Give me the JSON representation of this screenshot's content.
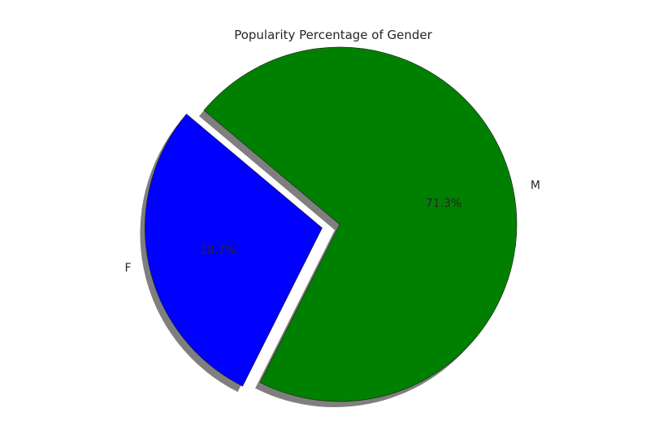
{
  "chart_data": {
    "type": "pie",
    "title": "Popularity Percentage of Gender",
    "categories": [
      "F",
      "M"
    ],
    "values": [
      28.7,
      71.3
    ],
    "percent_labels": [
      "28.7%",
      "71.3%"
    ],
    "colors": [
      "#0000ff",
      "#008000"
    ],
    "explode": [
      0.1,
      0
    ],
    "start_angle_deg": 140,
    "shadow": true,
    "legend": false
  }
}
